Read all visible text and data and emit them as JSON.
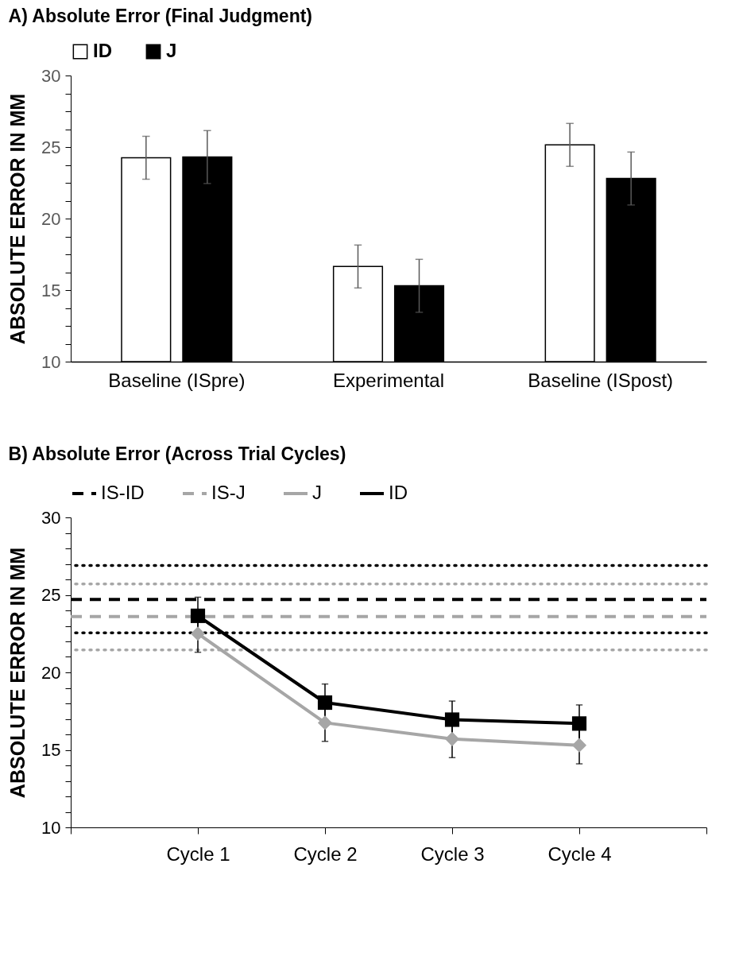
{
  "chart_data": [
    {
      "type": "bar",
      "title": "A) Absolute Error (Final Judgment)",
      "ylabel": "ABSOLUTE ERROR IN MM",
      "categories": [
        "Baseline (ISpre)",
        "Experimental",
        "Baseline (ISpost)"
      ],
      "series": [
        {
          "name": "ID",
          "color": "#ffffff",
          "values": [
            24.25,
            16.65,
            25.15
          ],
          "errors": [
            1.5,
            1.5,
            1.5
          ]
        },
        {
          "name": "J",
          "color": "#000000",
          "values": [
            24.3,
            15.3,
            22.8
          ],
          "errors": [
            1.85,
            1.85,
            1.85
          ]
        }
      ],
      "ylim": [
        10,
        30
      ],
      "yticks": [
        10,
        {
          "value": 11.25,
          "label": null
        },
        {
          "value": 12.5,
          "label": null
        },
        {
          "value": 13.75,
          "label": null
        },
        15,
        {
          "value": 16.25,
          "label": null
        },
        {
          "value": 17.5,
          "label": null
        },
        {
          "value": 18.75,
          "label": null
        },
        20,
        {
          "value": 21.25,
          "label": null
        },
        {
          "value": 22.5,
          "label": null
        },
        {
          "value": 23.75,
          "label": null
        },
        25,
        {
          "value": 26.25,
          "label": null
        },
        {
          "value": 27.5,
          "label": null
        },
        {
          "value": 28.75,
          "label": null
        },
        30
      ],
      "legend": "top"
    },
    {
      "type": "line",
      "title": "B) Absolute Error (Across Trial Cycles)",
      "ylabel": "ABSOLUTE ERROR IN MM",
      "categories": [
        null,
        "Cycle 1",
        "Cycle 2",
        "Cycle 3",
        "Cycle 4",
        null
      ],
      "series": [
        {
          "name": "IS-ID",
          "color": "#000000",
          "values": [
            24.7,
            24.7,
            24.7,
            24.7,
            24.7,
            24.7
          ],
          "line_style": "dashed",
          "marker": "none"
        },
        {
          "name": "IS-J",
          "color": "#a6a6a6",
          "values": [
            23.6,
            23.6,
            23.6,
            23.6,
            23.6,
            23.6
          ],
          "line_style": "dashed",
          "marker": "none"
        },
        {
          "name": "J",
          "color": "#a6a6a6",
          "values": [
            null,
            22.5,
            16.75,
            15.7,
            15.3,
            null
          ],
          "errors": [
            null,
            1.2,
            1.2,
            1.2,
            1.2,
            null
          ],
          "line_style": "solid",
          "marker": "diamond"
        },
        {
          "name": "ID",
          "color": "#000000",
          "values": [
            null,
            23.65,
            18.05,
            16.95,
            16.7,
            null
          ],
          "errors": [
            null,
            1.2,
            1.2,
            1.2,
            1.2,
            null
          ],
          "line_style": "solid",
          "marker": "square"
        }
      ],
      "ref_lines": [
        {
          "axis": "y",
          "value": 26.9,
          "color": "#000000",
          "line_style": "dotted"
        },
        {
          "axis": "y",
          "value": 22.55,
          "color": "#000000",
          "line_style": "dotted"
        },
        {
          "axis": "y",
          "value": 25.7,
          "color": "#a6a6a6",
          "line_style": "dotted"
        },
        {
          "axis": "y",
          "value": 21.45,
          "color": "#a6a6a6",
          "line_style": "dotted"
        }
      ],
      "ylim": [
        10,
        30
      ],
      "yticks": [
        10,
        {
          "value": 11,
          "label": null
        },
        {
          "value": 12,
          "label": null
        },
        {
          "value": 13,
          "label": null
        },
        {
          "value": 14,
          "label": null
        },
        15,
        {
          "value": 16,
          "label": null
        },
        {
          "value": 17,
          "label": null
        },
        {
          "value": 18,
          "label": null
        },
        {
          "value": 19,
          "label": null
        },
        20,
        {
          "value": 21,
          "label": null
        },
        {
          "value": 22,
          "label": null
        },
        {
          "value": 23,
          "label": null
        },
        {
          "value": 24,
          "label": null
        },
        25,
        {
          "value": 26,
          "label": null
        },
        {
          "value": 27,
          "label": null
        },
        {
          "value": 28,
          "label": null
        },
        {
          "value": 29,
          "label": null
        },
        30
      ],
      "legend": "top"
    }
  ]
}
